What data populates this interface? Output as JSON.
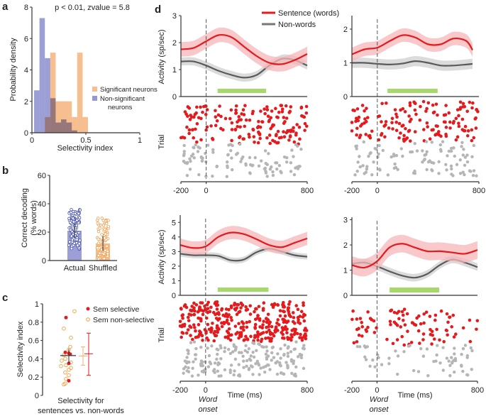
{
  "colors": {
    "sig": "#f4a460",
    "nonsig": "#7a7fc8",
    "red": "#e41a1c",
    "gray": "#555555",
    "raster_gray": "#b5b5b5",
    "green": "#a6d96a",
    "band_red": "#f5b5b8",
    "band_gray": "#cfcfcf"
  },
  "panel_labels": {
    "a": "a",
    "b": "b",
    "c": "c",
    "d": "d"
  },
  "chart_data": [
    {
      "id": "a",
      "type": "bar",
      "title": "p < 0.01, zvalue = 5.8",
      "xlabel": "Selectivity index",
      "ylabel": "Probability density",
      "xlim": [
        0,
        1
      ],
      "ylim": [
        0,
        8
      ],
      "xticks": [
        "0",
        "0.5",
        "1"
      ],
      "yticks": [
        "0",
        "2",
        "4",
        "6",
        "8"
      ],
      "legend_placement": "right",
      "bin_edges": [
        0.02,
        0.07,
        0.12,
        0.17,
        0.22,
        0.27,
        0.32,
        0.37,
        0.42,
        0.47,
        0.52
      ],
      "series": [
        {
          "name": "Significant neurons",
          "values": [
            0,
            0,
            1.0,
            5.1,
            2.0,
            2.0,
            2.0,
            1.0,
            5.1,
            1.0
          ]
        },
        {
          "name": "Non-significant neurons",
          "name_lines": [
            "Non-significant",
            "neurons"
          ],
          "values": [
            2.7,
            7.3,
            4.75,
            2.2,
            0.65,
            0.85,
            0.65,
            0.15,
            0,
            0
          ]
        }
      ]
    },
    {
      "id": "b",
      "type": "bar",
      "ylabel_lines": [
        "Correct decoding",
        "(% words)"
      ],
      "ylim": [
        0,
        60
      ],
      "yticks": [
        "0",
        "20",
        "40",
        "60"
      ],
      "categories": [
        "Actual",
        "Shuffled"
      ],
      "values": [
        21,
        12
      ],
      "errors": [
        5,
        5
      ]
    },
    {
      "id": "c",
      "type": "scatter",
      "ylabel": "Selectivity index",
      "xlabel_lines": [
        "Selectivity for",
        "sentences vs. non-words"
      ],
      "ylim": [
        0,
        1
      ],
      "yticks": [
        "0",
        "0.2",
        "0.4",
        "0.6",
        "0.8",
        "1"
      ],
      "series": [
        {
          "name": "Sem selective",
          "values": [
            0.85,
            0.47,
            0.46,
            0.45,
            0.35,
            0.16
          ]
        },
        {
          "name": "Sem non-selective",
          "values": [
            0.92,
            0.73,
            0.63,
            0.53,
            0.5,
            0.44,
            0.4,
            0.38,
            0.36,
            0.33,
            0.32,
            0.3,
            0.28,
            0.25,
            0.22,
            0.18,
            0.13,
            0.12
          ]
        }
      ],
      "overall_mean": 0.435,
      "overall_error": [
        0.35,
        0.51
      ],
      "group_means": [
        {
          "series": "Sem non-selective",
          "mean": 0.43,
          "error": [
            0.33,
            0.53
          ]
        },
        {
          "series": "Sem selective",
          "mean": 0.455,
          "error": [
            0.22,
            0.68
          ]
        }
      ]
    },
    {
      "id": "d",
      "type": "line",
      "ylabel": "Activity (sp/sec)",
      "raster_label": "Trial",
      "xlabel": "Time (ms)",
      "onset_label_lines": [
        "Word",
        "onset"
      ],
      "legend": [
        "Sentence (words)",
        "Non-words"
      ],
      "legend_placement": "top",
      "xlim": [
        -200,
        800
      ],
      "xticks": [
        "-200",
        "0",
        "800"
      ],
      "subplots": [
        {
          "ylim": [
            0,
            3
          ],
          "yticks": [
            "0",
            "1",
            "2",
            "3"
          ],
          "window": [
            90,
            475
          ],
          "times": [
            -200,
            -100,
            0,
            100,
            200,
            300,
            400,
            500,
            600,
            700,
            800
          ],
          "sentence": {
            "mean": [
              1.75,
              1.8,
              2.05,
              2.28,
              2.2,
              1.85,
              1.5,
              1.25,
              1.2,
              1.35,
              1.58
            ],
            "sem": 0.27
          },
          "nonwords": {
            "mean": [
              1.3,
              1.3,
              1.15,
              0.95,
              0.8,
              0.7,
              0.8,
              1.15,
              1.4,
              1.35,
              1.15
            ],
            "sem": 0.15
          }
        },
        {
          "ylim": [
            0,
            2.4
          ],
          "yticks": [
            "0",
            "1",
            "2"
          ],
          "window": [
            80,
            475
          ],
          "times": [
            -200,
            -100,
            0,
            100,
            200,
            300,
            400,
            500,
            600,
            700,
            750
          ],
          "sentence": {
            "mean": [
              1.25,
              1.4,
              1.45,
              1.65,
              1.82,
              1.75,
              1.55,
              1.55,
              1.72,
              1.65,
              1.38
            ],
            "sem": 0.2
          },
          "nonwords": {
            "mean": [
              1.0,
              1.0,
              0.97,
              0.95,
              0.98,
              1.05,
              1.0,
              0.92,
              0.92,
              0.95,
              0.97
            ],
            "sem": 0.15
          }
        },
        {
          "ylim": [
            0,
            5.5
          ],
          "yticks": [
            "0",
            "1",
            "2",
            "3",
            "4",
            "5"
          ],
          "window": [
            95,
            495
          ],
          "times": [
            -200,
            -100,
            0,
            100,
            200,
            300,
            400,
            500,
            600,
            700,
            800
          ],
          "sentence": {
            "mean": [
              3.45,
              3.25,
              3.35,
              4.0,
              4.3,
              4.2,
              3.85,
              3.45,
              3.3,
              3.6,
              3.9
            ],
            "sem": 0.45
          },
          "nonwords": {
            "mean": [
              2.85,
              2.75,
              2.75,
              2.7,
              2.4,
              2.45,
              2.95,
              3.2,
              3.0,
              2.75,
              2.65
            ],
            "sem": 0.2
          }
        },
        {
          "ylim": [
            0,
            3.1
          ],
          "yticks": [
            "0",
            "1",
            "2",
            "3"
          ],
          "window": [
            100,
            495
          ],
          "times": [
            -200,
            -100,
            0,
            100,
            200,
            300,
            400,
            500,
            600,
            700,
            800
          ],
          "sentence": {
            "mean": [
              1.2,
              1.1,
              1.35,
              1.9,
              2.05,
              1.9,
              1.75,
              1.75,
              1.7,
              1.65,
              1.8
            ],
            "sem": 0.35
          },
          "nonwords": {
            "mean": [
              1.25,
              1.3,
              1.15,
              0.95,
              0.78,
              0.7,
              0.85,
              1.2,
              1.42,
              1.3,
              1.12
            ],
            "sem": 0.15
          }
        }
      ]
    }
  ]
}
